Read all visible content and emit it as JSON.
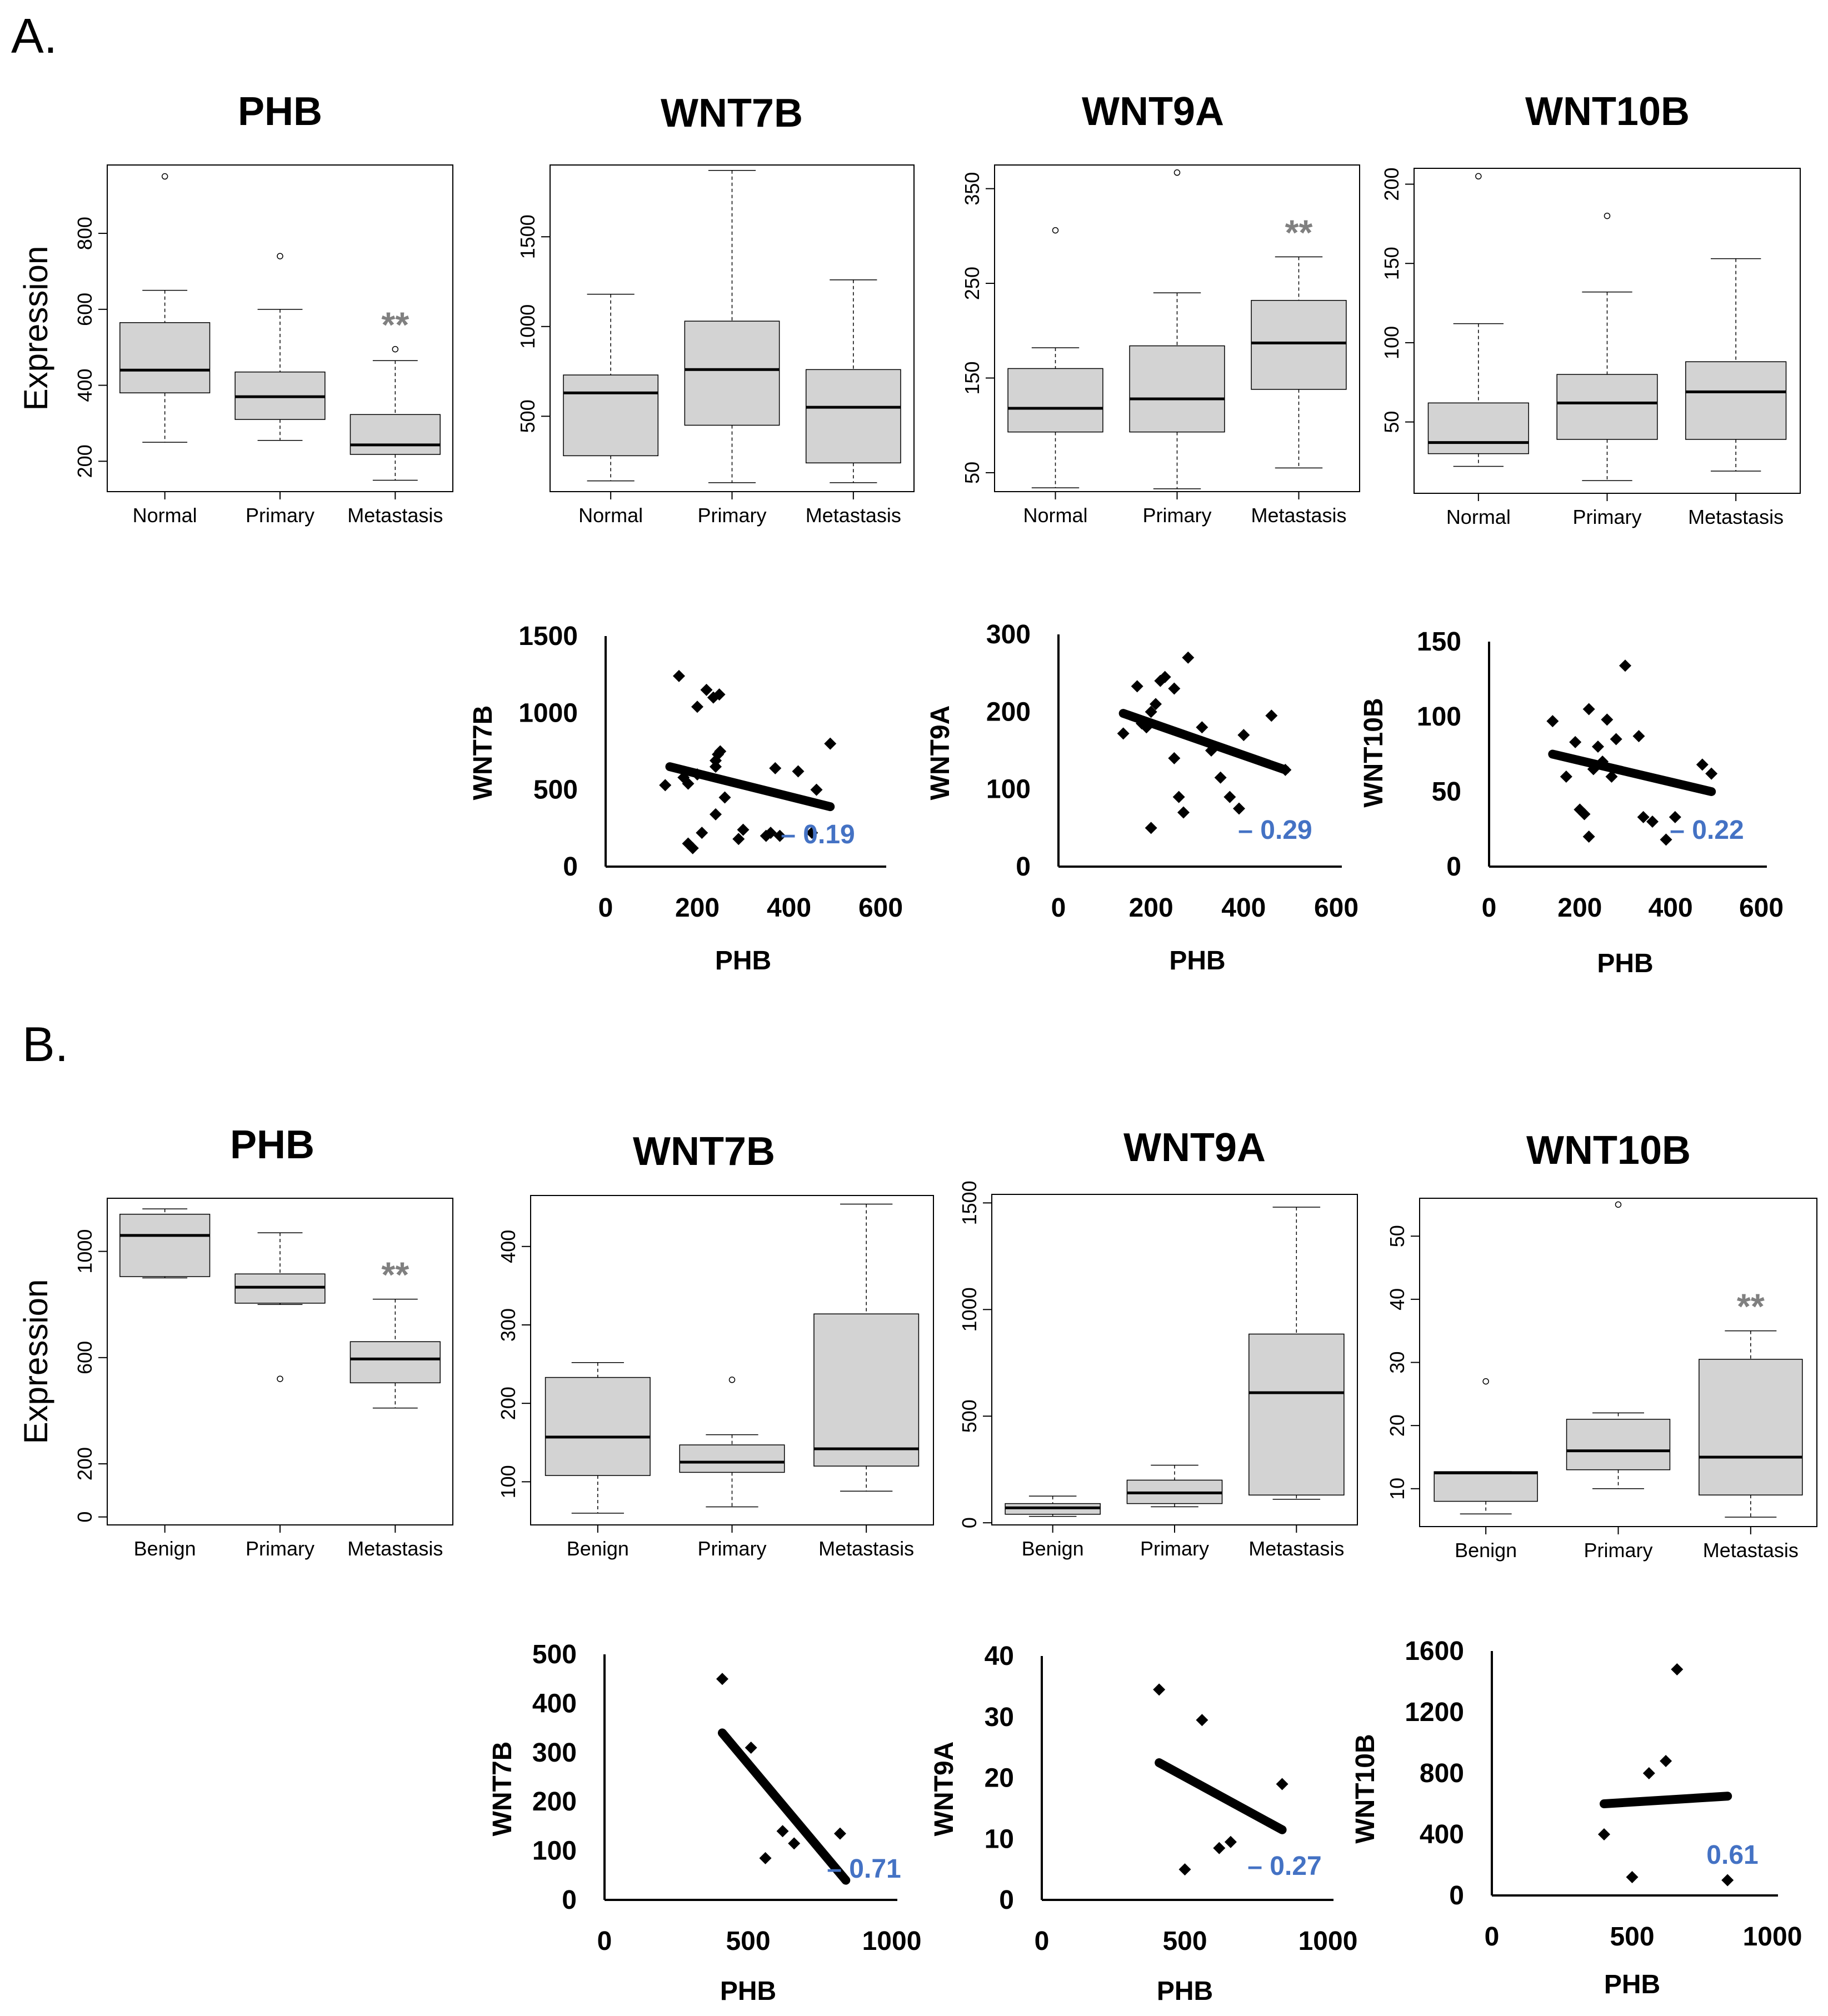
{
  "panel_labels": [
    "A.",
    "B."
  ],
  "colors": {
    "box_fill": "#d3d3d3",
    "significance": "#808080",
    "correlation": "#4472c4",
    "ink": "#000000"
  },
  "boxplot_ylabel": "Expression",
  "chart_data": [
    {
      "id": "A-PHB",
      "type": "boxplot",
      "title": "PHB",
      "ylabel": "Expression",
      "categories": [
        "Normal",
        "Primary",
        "Metastasis"
      ],
      "ylim": [
        120,
        980
      ],
      "yticks": [
        200,
        400,
        600,
        800
      ],
      "boxes": [
        {
          "min": 250,
          "q1": 380,
          "median": 440,
          "q3": 565,
          "max": 650,
          "outliers": [
            950
          ]
        },
        {
          "min": 255,
          "q1": 310,
          "median": 370,
          "q3": 435,
          "max": 600,
          "outliers": [
            740
          ]
        },
        {
          "min": 150,
          "q1": 218,
          "median": 243,
          "q3": 323,
          "max": 465,
          "outliers": [
            495
          ]
        }
      ],
      "annotation": {
        "category": "Metastasis",
        "text": "**"
      }
    },
    {
      "id": "A-WNT7B",
      "type": "boxplot",
      "title": "WNT7B",
      "categories": [
        "Normal",
        "Primary",
        "Metastasis"
      ],
      "ylim": [
        80,
        1900
      ],
      "yticks": [
        500,
        1000,
        1500
      ],
      "boxes": [
        {
          "min": 140,
          "q1": 280,
          "median": 630,
          "q3": 730,
          "max": 1180,
          "outliers": []
        },
        {
          "min": 130,
          "q1": 450,
          "median": 760,
          "q3": 1030,
          "max": 1870,
          "outliers": []
        },
        {
          "min": 130,
          "q1": 240,
          "median": 550,
          "q3": 760,
          "max": 1260,
          "outliers": []
        }
      ]
    },
    {
      "id": "A-WNT9A",
      "type": "boxplot",
      "title": "WNT9A",
      "categories": [
        "Normal",
        "Primary",
        "Metastasis"
      ],
      "ylim": [
        30,
        375
      ],
      "yticks": [
        50,
        150,
        250,
        350
      ],
      "boxes": [
        {
          "min": 34,
          "q1": 93,
          "median": 118,
          "q3": 160,
          "max": 182,
          "outliers": [
            306
          ]
        },
        {
          "min": 33,
          "q1": 93,
          "median": 128,
          "q3": 184,
          "max": 240,
          "outliers": [
            367
          ]
        },
        {
          "min": 55,
          "q1": 138,
          "median": 187,
          "q3": 232,
          "max": 278,
          "outliers": []
        }
      ],
      "annotation": {
        "category": "Metastasis",
        "text": "**"
      }
    },
    {
      "id": "A-WNT10B",
      "type": "boxplot",
      "title": "WNT10B",
      "categories": [
        "Normal",
        "Primary",
        "Metastasis"
      ],
      "ylim": [
        5,
        210
      ],
      "yticks": [
        50,
        100,
        150,
        200
      ],
      "boxes": [
        {
          "min": 22,
          "q1": 30,
          "median": 37,
          "q3": 62,
          "max": 112,
          "outliers": [
            205
          ]
        },
        {
          "min": 13,
          "q1": 39,
          "median": 62,
          "q3": 80,
          "max": 132,
          "outliers": [
            180
          ]
        },
        {
          "min": 19,
          "q1": 39,
          "median": 69,
          "q3": 88,
          "max": 153,
          "outliers": []
        }
      ]
    },
    {
      "id": "A-sc-WNT7B",
      "type": "scatter",
      "xlabel": "PHB",
      "ylabel": "WNT7B",
      "xlim": [
        0,
        600
      ],
      "ylim": [
        0,
        1500
      ],
      "xticks": [
        0,
        200,
        400,
        600
      ],
      "yticks": [
        0,
        500,
        1000,
        1500
      ],
      "points": [
        [
          160,
          1240
        ],
        [
          200,
          1040
        ],
        [
          220,
          1150
        ],
        [
          235,
          1100
        ],
        [
          248,
          1120
        ],
        [
          130,
          530
        ],
        [
          170,
          580
        ],
        [
          180,
          540
        ],
        [
          200,
          600
        ],
        [
          240,
          650
        ],
        [
          240,
          690
        ],
        [
          245,
          730
        ],
        [
          250,
          750
        ],
        [
          210,
          220
        ],
        [
          240,
          340
        ],
        [
          260,
          450
        ],
        [
          290,
          180
        ],
        [
          300,
          240
        ],
        [
          180,
          150
        ],
        [
          190,
          120
        ],
        [
          350,
          200
        ],
        [
          360,
          220
        ],
        [
          380,
          200
        ],
        [
          370,
          640
        ],
        [
          420,
          620
        ],
        [
          450,
          220
        ],
        [
          460,
          500
        ],
        [
          490,
          800
        ]
      ],
      "trend": [
        [
          140,
          650
        ],
        [
          490,
          390
        ]
      ],
      "correlation": "– 0.19"
    },
    {
      "id": "A-sc-WNT9A",
      "type": "scatter",
      "xlabel": "PHB",
      "ylabel": "WNT9A",
      "xlim": [
        0,
        600
      ],
      "ylim": [
        0,
        300
      ],
      "xticks": [
        0,
        200,
        400,
        600
      ],
      "yticks": [
        0,
        100,
        200,
        300
      ],
      "points": [
        [
          140,
          172
        ],
        [
          170,
          233
        ],
        [
          200,
          200
        ],
        [
          210,
          210
        ],
        [
          220,
          240
        ],
        [
          230,
          245
        ],
        [
          250,
          230
        ],
        [
          250,
          140
        ],
        [
          280,
          270
        ],
        [
          200,
          50
        ],
        [
          260,
          90
        ],
        [
          270,
          70
        ],
        [
          310,
          180
        ],
        [
          330,
          150
        ],
        [
          350,
          115
        ],
        [
          370,
          90
        ],
        [
          390,
          75
        ],
        [
          400,
          170
        ],
        [
          460,
          195
        ],
        [
          490,
          125
        ],
        [
          180,
          185
        ],
        [
          190,
          180
        ]
      ],
      "trend": [
        [
          140,
          198
        ],
        [
          490,
          125
        ]
      ],
      "correlation": "– 0.29"
    },
    {
      "id": "A-sc-WNT10B",
      "type": "scatter",
      "xlabel": "PHB",
      "ylabel": "WNT10B",
      "xlim": [
        0,
        600
      ],
      "ylim": [
        0,
        150
      ],
      "xticks": [
        0,
        200,
        400,
        600
      ],
      "yticks": [
        0,
        50,
        100,
        150
      ],
      "points": [
        [
          140,
          97
        ],
        [
          170,
          60
        ],
        [
          190,
          83
        ],
        [
          200,
          38
        ],
        [
          210,
          35
        ],
        [
          220,
          20
        ],
        [
          230,
          65
        ],
        [
          240,
          80
        ],
        [
          220,
          105
        ],
        [
          260,
          98
        ],
        [
          280,
          85
        ],
        [
          270,
          60
        ],
        [
          300,
          134
        ],
        [
          330,
          87
        ],
        [
          340,
          33
        ],
        [
          360,
          30
        ],
        [
          390,
          18
        ],
        [
          410,
          33
        ],
        [
          470,
          68
        ],
        [
          490,
          62
        ],
        [
          250,
          70
        ]
      ],
      "trend": [
        [
          140,
          75
        ],
        [
          490,
          50
        ]
      ],
      "correlation": "– 0.22"
    },
    {
      "id": "B-PHB",
      "type": "boxplot",
      "title": "PHB",
      "ylabel": "Expression",
      "categories": [
        "Benign",
        "Primary",
        "Metastasis"
      ],
      "ylim": [
        -30,
        1200
      ],
      "yticks": [
        0,
        200,
        600,
        1000
      ],
      "boxes": [
        {
          "min": 900,
          "q1": 905,
          "median": 1060,
          "q3": 1140,
          "max": 1160,
          "outliers": []
        },
        {
          "min": 800,
          "q1": 805,
          "median": 865,
          "q3": 915,
          "max": 1070,
          "outliers": [
            520
          ]
        },
        {
          "min": 410,
          "q1": 505,
          "median": 595,
          "q3": 660,
          "max": 820,
          "outliers": []
        }
      ],
      "annotation": {
        "category": "Metastasis",
        "text": "**"
      }
    },
    {
      "id": "B-WNT7B",
      "type": "boxplot",
      "title": "WNT7B",
      "categories": [
        "Benign",
        "Primary",
        "Metastasis"
      ],
      "ylim": [
        45,
        465
      ],
      "yticks": [
        100,
        200,
        300,
        400
      ],
      "boxes": [
        {
          "min": 60,
          "q1": 108,
          "median": 157,
          "q3": 233,
          "max": 252,
          "outliers": []
        },
        {
          "min": 68,
          "q1": 112,
          "median": 125,
          "q3": 147,
          "max": 160,
          "outliers": [
            230
          ]
        },
        {
          "min": 88,
          "q1": 120,
          "median": 142,
          "q3": 314,
          "max": 454,
          "outliers": []
        }
      ]
    },
    {
      "id": "B-WNT9A",
      "type": "boxplot",
      "title": "WNT9A",
      "categories": [
        "Benign",
        "Primary",
        "Metastasis"
      ],
      "ylim": [
        -10,
        1540
      ],
      "yticks": [
        0,
        500,
        1000,
        1500
      ],
      "boxes": [
        {
          "min": 30,
          "q1": 40,
          "median": 70,
          "q3": 90,
          "max": 125,
          "outliers": []
        },
        {
          "min": 75,
          "q1": 90,
          "median": 140,
          "q3": 200,
          "max": 270,
          "outliers": []
        },
        {
          "min": 110,
          "q1": 130,
          "median": 610,
          "q3": 885,
          "max": 1480,
          "outliers": []
        }
      ]
    },
    {
      "id": "B-WNT10B",
      "type": "boxplot",
      "title": "WNT10B",
      "categories": [
        "Benign",
        "Primary",
        "Metastasis"
      ],
      "ylim": [
        4,
        56
      ],
      "yticks": [
        10,
        20,
        30,
        40,
        50
      ],
      "boxes": [
        {
          "min": 6,
          "q1": 8,
          "median": 12.5,
          "q3": 12.7,
          "max": 12.7,
          "outliers": [
            27
          ]
        },
        {
          "min": 10,
          "q1": 13,
          "median": 16,
          "q3": 21,
          "max": 22,
          "outliers": [
            55
          ]
        },
        {
          "min": 5.5,
          "q1": 9,
          "median": 15,
          "q3": 30.5,
          "max": 35,
          "outliers": []
        }
      ],
      "annotation": {
        "category": "Metastasis",
        "text": "**"
      }
    },
    {
      "id": "B-sc-WNT7B",
      "type": "scatter",
      "xlabel": "PHB",
      "ylabel": "WNT7B",
      "xlim": [
        0,
        1000
      ],
      "ylim": [
        0,
        500
      ],
      "xticks": [
        0,
        500,
        1000
      ],
      "yticks": [
        0,
        100,
        200,
        300,
        400,
        500
      ],
      "points": [
        [
          410,
          450
        ],
        [
          510,
          310
        ],
        [
          560,
          85
        ],
        [
          620,
          140
        ],
        [
          660,
          115
        ],
        [
          820,
          135
        ]
      ],
      "trend": [
        [
          410,
          340
        ],
        [
          840,
          40
        ]
      ],
      "correlation": "– 0.71"
    },
    {
      "id": "B-sc-WNT9A",
      "type": "scatter",
      "xlabel": "PHB",
      "ylabel": "WNT9A",
      "xlim": [
        0,
        1000
      ],
      "ylim": [
        0,
        40
      ],
      "xticks": [
        0,
        500,
        1000
      ],
      "yticks": [
        0,
        10,
        20,
        30,
        40
      ],
      "points": [
        [
          410,
          34.5
        ],
        [
          500,
          5
        ],
        [
          560,
          29.5
        ],
        [
          620,
          8.5
        ],
        [
          660,
          9.5
        ],
        [
          840,
          19
        ]
      ],
      "trend": [
        [
          410,
          22.5
        ],
        [
          840,
          11.5
        ]
      ],
      "correlation": "– 0.27"
    },
    {
      "id": "B-sc-WNT10B",
      "type": "scatter",
      "xlabel": "PHB",
      "ylabel": "WNT10B",
      "xlim": [
        0,
        1000
      ],
      "ylim": [
        0,
        1600
      ],
      "xticks": [
        0,
        500,
        1000
      ],
      "yticks": [
        0,
        400,
        800,
        1200,
        1600
      ],
      "points": [
        [
          400,
          400
        ],
        [
          500,
          120
        ],
        [
          560,
          800
        ],
        [
          620,
          880
        ],
        [
          660,
          1480
        ],
        [
          840,
          100
        ]
      ],
      "trend": [
        [
          400,
          600
        ],
        [
          840,
          650
        ]
      ],
      "correlation": "0.61"
    }
  ]
}
